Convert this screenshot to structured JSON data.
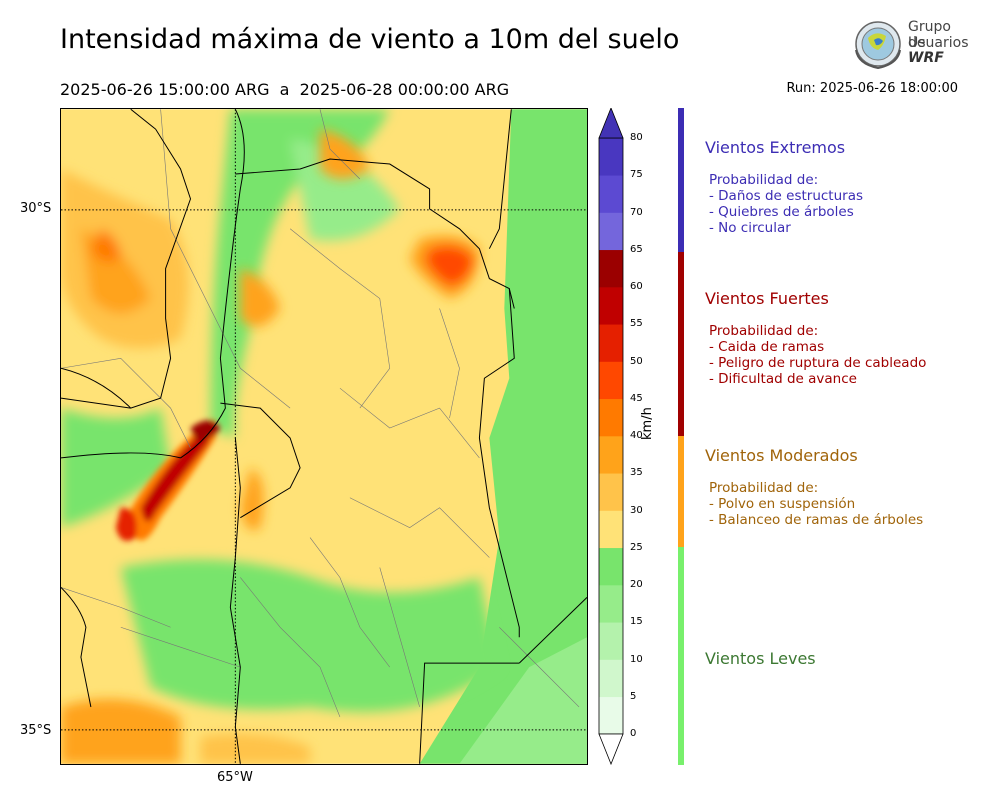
{
  "header": {
    "title": "Intensidad máxima de viento a 10m del suelo",
    "period": "2025-06-26 15:00:00 ARG  a  2025-06-28 00:00:00 ARG",
    "run": "Run: 2025-06-26 18:00:00"
  },
  "logo": {
    "line1": "Grupo de",
    "line2": "Usuarios",
    "line3": "WRF"
  },
  "map": {
    "lat_labels": [
      "30°S",
      "35°S"
    ],
    "lon_labels": [
      "65°W"
    ]
  },
  "colorbar": {
    "unit": "km/h",
    "ticks": [
      "0",
      "5",
      "10",
      "15",
      "20",
      "25",
      "30",
      "35",
      "40",
      "45",
      "50",
      "55",
      "60",
      "65",
      "70",
      "75",
      "80"
    ],
    "colors": [
      "#e8fbe8",
      "#d0f7cc",
      "#b4f2ac",
      "#96ec8a",
      "#78e46c",
      "#ffe277",
      "#ffc34a",
      "#ffa31a",
      "#ff7a00",
      "#ff4800",
      "#e52000",
      "#c00000",
      "#9b0000",
      "#7466dc",
      "#5c4ad2",
      "#4937c0"
    ],
    "extend_min_color": "#ffffff",
    "extend_max_color": "#4233b5"
  },
  "categories": [
    {
      "title": "Vientos Extremos",
      "color": "#3c2db4",
      "lines": [
        "Probabilidad de:",
        "- Daños de estructuras",
        "- Quiebres de árboles",
        "- No circular"
      ]
    },
    {
      "title": "Vientos Fuertes",
      "color": "#a00000",
      "lines": [
        "Probabilidad de:",
        "- Caida de ramas",
        "- Peligro de ruptura de cableado",
        "- Dificultad de avance"
      ]
    },
    {
      "title": "Vientos Moderados",
      "color": "#a0640a",
      "lines": [
        "Probabilidad de:",
        "- Polvo en suspensión",
        "- Balanceo de ramas de árboles"
      ]
    },
    {
      "title": "Vientos Leves",
      "color": "#3c7832",
      "lines": []
    }
  ]
}
